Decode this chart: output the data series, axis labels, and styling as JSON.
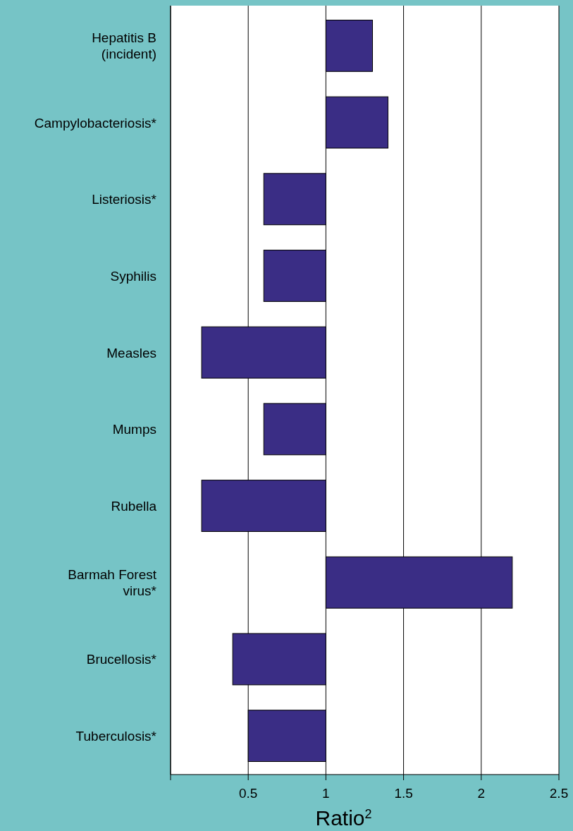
{
  "chart_data": {
    "type": "bar",
    "orientation": "horizontal",
    "xlabel": "Ratio$^{2}$",
    "categories": [
      "Hepatitis B\n(incident)",
      "Campylobacteriosis*",
      "Listeriosis*",
      "Syphilis",
      "Measles",
      "Mumps",
      "Rubella",
      "Barmah Forest\nvirus*",
      "Brucellosis*",
      "Tuberculosis*"
    ],
    "base": [
      1,
      1,
      1,
      1,
      1,
      1,
      1,
      1,
      1,
      1
    ],
    "values": [
      0.3,
      0.4,
      -0.4,
      -0.4,
      -0.8,
      -0.4,
      -0.8,
      1.2,
      -0.6,
      -0.5
    ],
    "color": "#3a2d85",
    "xlim": [
      0,
      2.5
    ],
    "xticks": [
      {
        "value": 0,
        "label": null
      },
      0.5,
      1,
      1.5,
      2,
      2.5
    ],
    "grid": "x"
  }
}
